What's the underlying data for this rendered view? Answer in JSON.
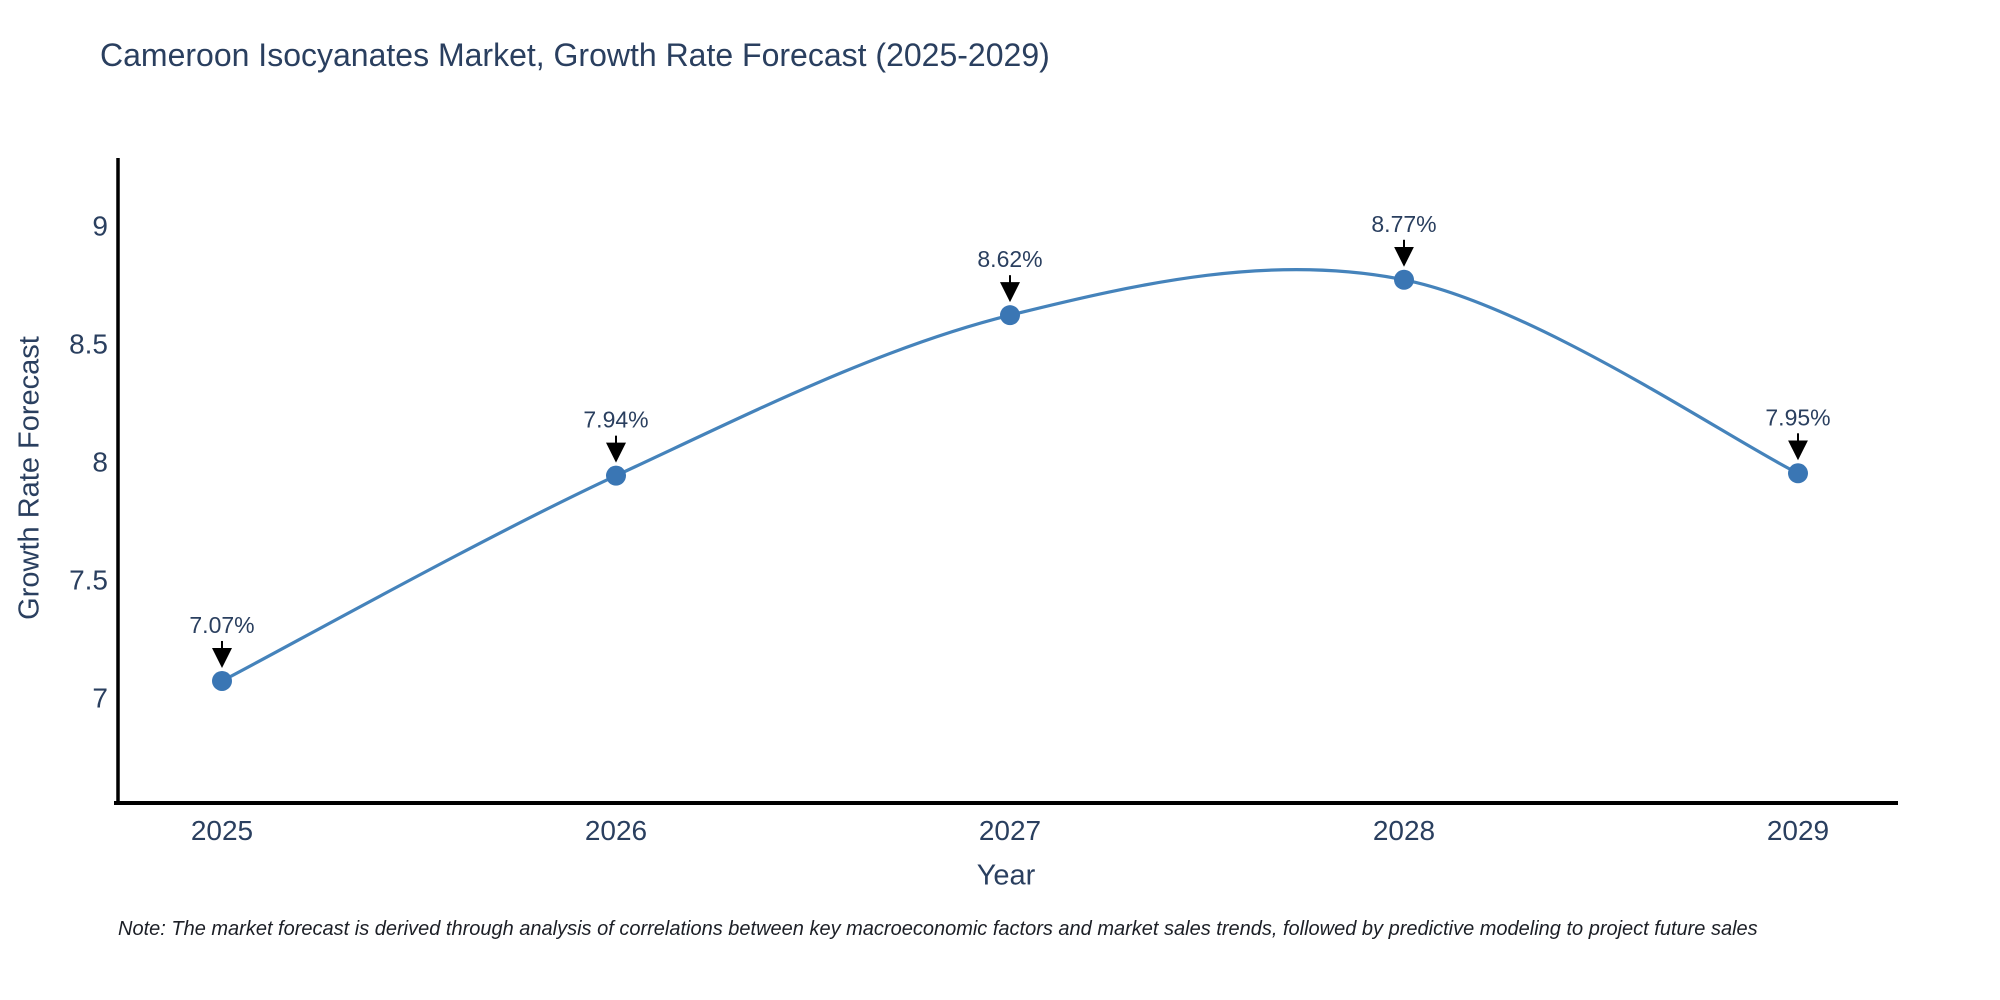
{
  "note": {
    "text": "Note: The market forecast is derived through analysis of correlations between key macroeconomic factors and market sales trends, followed by predictive modeling to project future sales"
  },
  "chart_data": {
    "type": "line",
    "title": "Cameroon Isocyanates Market, Growth Rate Forecast (2025-2029)",
    "xlabel": "Year",
    "ylabel": "Growth Rate Forecast",
    "categories": [
      "2025",
      "2026",
      "2027",
      "2028",
      "2029"
    ],
    "values": [
      7.07,
      7.94,
      8.62,
      8.77,
      7.95
    ],
    "point_labels": [
      "7.07%",
      "7.94%",
      "8.62%",
      "8.77%",
      "7.95%"
    ],
    "yticks": [
      7,
      7.5,
      8,
      8.5,
      9
    ],
    "ylim": [
      6.56,
      9.3
    ],
    "line_shape": "spline",
    "grid": false,
    "legend_position": "none",
    "colors": {
      "line": "#4583bb",
      "marker": "#3a76b4",
      "arrow": "#000000",
      "axis": "#000000",
      "label_text": "#2a3f5f"
    }
  }
}
